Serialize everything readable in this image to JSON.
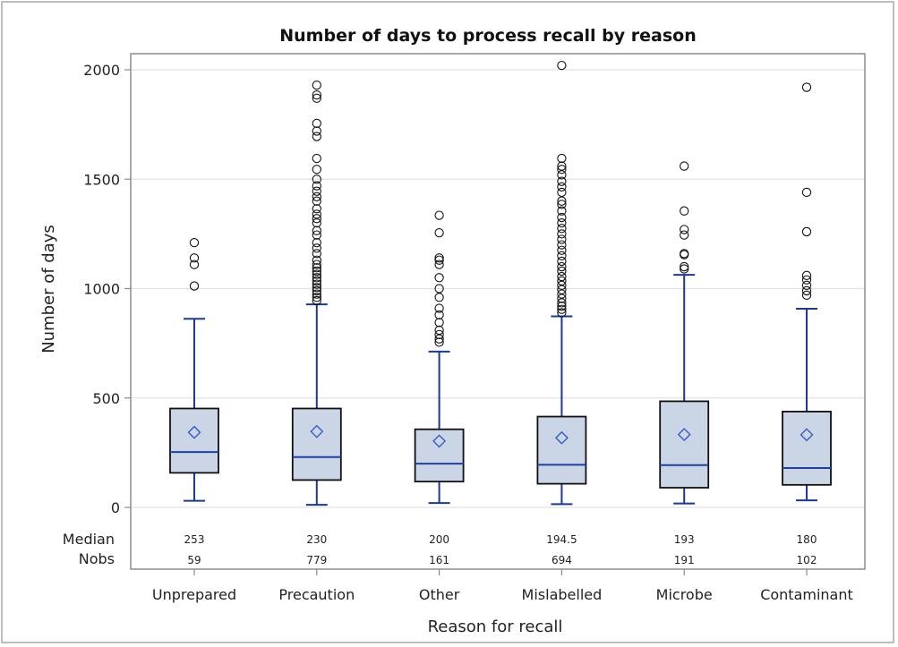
{
  "chart_data": {
    "type": "box",
    "title": "Number of days to process recall by reason",
    "xlabel": "Reason for recall",
    "ylabel": "Number of days",
    "ylim": [
      0,
      2000
    ],
    "yticks": [
      0,
      500,
      1000,
      1500,
      2000
    ],
    "grid": true,
    "categories": [
      "Unprepared",
      "Precaution",
      "Other",
      "Mislabelled",
      "Microbe",
      "Contaminant"
    ],
    "stat_labels": {
      "median": "Median",
      "nobs": "Nobs"
    },
    "median_text": [
      "253",
      "230",
      "200",
      "194.5",
      "193",
      "180"
    ],
    "nobs_text": [
      "59",
      "779",
      "161",
      "694",
      "191",
      "102"
    ],
    "boxes": [
      {
        "q1": 158,
        "median": 253,
        "q3": 452,
        "mean": 343,
        "whisker_low": 30,
        "whisker_high": 862,
        "outliers": [
          1012,
          1110,
          1140,
          1210
        ]
      },
      {
        "q1": 125,
        "median": 230,
        "q3": 452,
        "mean": 347,
        "whisker_low": 12,
        "whisker_high": 928,
        "outliers": [
          945,
          960,
          975,
          990,
          1005,
          1020,
          1035,
          1050,
          1065,
          1080,
          1095,
          1110,
          1130,
          1160,
          1185,
          1210,
          1245,
          1265,
          1300,
          1320,
          1340,
          1365,
          1400,
          1420,
          1445,
          1470,
          1500,
          1545,
          1595,
          1695,
          1720,
          1755,
          1870,
          1885,
          1930
        ]
      },
      {
        "q1": 118,
        "median": 200,
        "q3": 357,
        "mean": 303,
        "whisker_low": 20,
        "whisker_high": 712,
        "outliers": [
          755,
          770,
          790,
          810,
          845,
          880,
          910,
          960,
          1000,
          1050,
          1110,
          1130,
          1140,
          1255,
          1335
        ]
      },
      {
        "q1": 108,
        "median": 195,
        "q3": 415,
        "mean": 318,
        "whisker_low": 15,
        "whisker_high": 873,
        "outliers": [
          890,
          905,
          920,
          935,
          955,
          975,
          995,
          1015,
          1035,
          1055,
          1080,
          1100,
          1125,
          1150,
          1175,
          1200,
          1225,
          1250,
          1275,
          1300,
          1325,
          1355,
          1385,
          1400,
          1440,
          1465,
          1490,
          1520,
          1545,
          1560,
          1595,
          2020
        ]
      },
      {
        "q1": 90,
        "median": 193,
        "q3": 485,
        "mean": 333,
        "whisker_low": 18,
        "whisker_high": 1063,
        "outliers": [
          1090,
          1100,
          1155,
          1160,
          1245,
          1270,
          1355,
          1560
        ]
      },
      {
        "q1": 103,
        "median": 180,
        "q3": 438,
        "mean": 332,
        "whisker_low": 32,
        "whisker_high": 908,
        "outliers": [
          970,
          990,
          1015,
          1040,
          1060,
          1260,
          1440,
          1920
        ]
      }
    ],
    "colors": {
      "box_fill": "#cad5e5",
      "box_edge": "#111111",
      "median_line": "#1f3fa8",
      "whisker": "#1a3a96",
      "mean_marker": "#2e55c4",
      "outlier": "#111111",
      "grid": "#e2e2e2",
      "frame": "#8c8c8c"
    }
  }
}
